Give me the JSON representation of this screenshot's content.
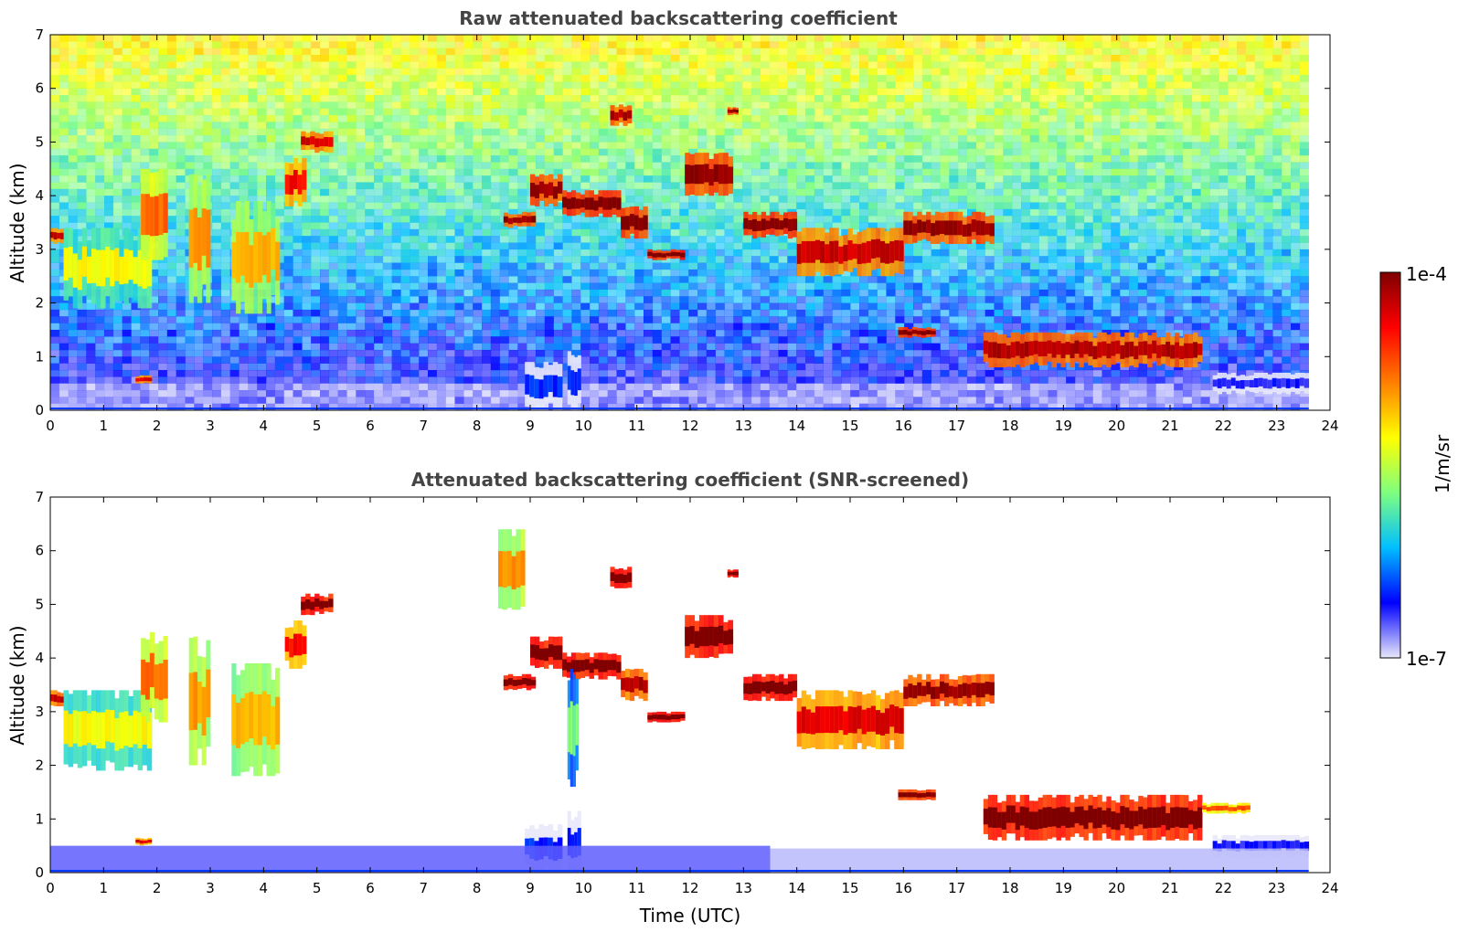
{
  "chart_data": {
    "type": "heatmap",
    "colorbar": {
      "label": "1/m/sr",
      "tick_max": "1e-4",
      "tick_min": "1e-7",
      "scale": "log",
      "vmin": 1e-07,
      "vmax": 0.0001,
      "colormap": "jet",
      "colors": [
        "#e8e8fa",
        "#0000ff",
        "#00bfff",
        "#7fff7f",
        "#ffff00",
        "#ff7f00",
        "#ff0000",
        "#7f0000"
      ]
    },
    "xlabel": "Time (UTC)",
    "x_ticks": [
      "0",
      "1",
      "2",
      "3",
      "4",
      "5",
      "6",
      "7",
      "8",
      "9",
      "10",
      "11",
      "12",
      "13",
      "14",
      "15",
      "16",
      "17",
      "18",
      "19",
      "20",
      "21",
      "22",
      "23",
      "24"
    ],
    "xlim": [
      0,
      24
    ],
    "data_end_hour": 23.6,
    "panels": [
      {
        "title": "Raw attenuated backscattering coefficient",
        "ylabel": "Altitude (km)",
        "y_ticks": [
          "0",
          "1",
          "2",
          "3",
          "4",
          "5",
          "6",
          "7"
        ],
        "ylim": [
          0,
          7
        ],
        "background": "noise",
        "features": [
          {
            "kind": "cloud",
            "t0": 0.0,
            "t1": 0.25,
            "base_km": 3.1,
            "top_km": 3.4,
            "level": 6.5
          },
          {
            "kind": "cloud",
            "t0": 0.25,
            "t1": 1.9,
            "base_km": 1.9,
            "top_km": 3.4,
            "level": 4.0
          },
          {
            "kind": "cloud",
            "t0": 1.7,
            "t1": 2.2,
            "base_km": 2.8,
            "top_km": 4.5,
            "level": 5.2
          },
          {
            "kind": "cloud",
            "t0": 2.6,
            "t1": 3.0,
            "base_km": 2.0,
            "top_km": 4.4,
            "level": 4.8
          },
          {
            "kind": "cloud",
            "t0": 3.4,
            "t1": 4.3,
            "base_km": 1.8,
            "top_km": 3.9,
            "level": 4.6
          },
          {
            "kind": "cloud",
            "t0": 4.4,
            "t1": 4.8,
            "base_km": 3.8,
            "top_km": 4.7,
            "level": 6.0
          },
          {
            "kind": "cloud",
            "t0": 4.7,
            "t1": 5.3,
            "base_km": 4.8,
            "top_km": 5.2,
            "level": 6.3
          },
          {
            "kind": "cloud",
            "t0": 1.6,
            "t1": 1.9,
            "base_km": 0.5,
            "top_km": 0.65,
            "level": 6.2
          },
          {
            "kind": "cloud",
            "t0": 8.5,
            "t1": 9.1,
            "base_km": 3.4,
            "top_km": 3.7,
            "level": 6.8
          },
          {
            "kind": "cloud",
            "t0": 9.0,
            "t1": 9.6,
            "base_km": 3.8,
            "top_km": 4.4,
            "level": 6.8
          },
          {
            "kind": "cloud",
            "t0": 9.6,
            "t1": 10.7,
            "base_km": 3.6,
            "top_km": 4.1,
            "level": 7.0
          },
          {
            "kind": "cloud",
            "t0": 10.7,
            "t1": 11.2,
            "base_km": 3.2,
            "top_km": 3.8,
            "level": 7.0
          },
          {
            "kind": "cloud",
            "t0": 11.2,
            "t1": 11.9,
            "base_km": 2.8,
            "top_km": 3.0,
            "level": 7.2
          },
          {
            "kind": "cloud",
            "t0": 10.5,
            "t1": 10.9,
            "base_km": 5.3,
            "top_km": 5.7,
            "level": 6.6
          },
          {
            "kind": "cloud",
            "t0": 11.9,
            "t1": 12.8,
            "base_km": 4.0,
            "top_km": 4.8,
            "level": 6.8
          },
          {
            "kind": "cloud",
            "t0": 12.7,
            "t1": 12.9,
            "base_km": 5.5,
            "top_km": 5.65,
            "level": 6.8
          },
          {
            "kind": "cloud",
            "t0": 13.0,
            "t1": 14.0,
            "base_km": 3.2,
            "top_km": 3.7,
            "level": 7.0
          },
          {
            "kind": "cloud",
            "t0": 14.0,
            "t1": 16.0,
            "base_km": 2.5,
            "top_km": 3.4,
            "level": 6.4
          },
          {
            "kind": "cloud",
            "t0": 16.0,
            "t1": 17.7,
            "base_km": 3.1,
            "top_km": 3.7,
            "level": 6.8
          },
          {
            "kind": "cloud",
            "t0": 15.9,
            "t1": 16.6,
            "base_km": 1.35,
            "top_km": 1.55,
            "level": 7.0
          },
          {
            "kind": "cloud",
            "t0": 17.5,
            "t1": 21.6,
            "base_km": 0.8,
            "top_km": 1.45,
            "level": 6.6
          },
          {
            "kind": "cloud",
            "t0": 8.9,
            "t1": 9.6,
            "base_km": 0.0,
            "top_km": 0.9,
            "level": 1.2
          },
          {
            "kind": "cloud",
            "t0": 9.7,
            "t1": 9.95,
            "base_km": 0.0,
            "top_km": 1.1,
            "level": 1.2
          },
          {
            "kind": "cloud",
            "t0": 21.8,
            "t1": 23.6,
            "base_km": 0.3,
            "top_km": 0.7,
            "level": 0.9
          }
        ]
      },
      {
        "title": "Attenuated backscattering coefficient (SNR-screened)",
        "ylabel": "Altitude (km)",
        "y_ticks": [
          "0",
          "1",
          "2",
          "3",
          "4",
          "5",
          "6",
          "7"
        ],
        "ylim": [
          0,
          7
        ],
        "background": "white",
        "features": [
          {
            "kind": "cloud",
            "t0": 0.0,
            "t1": 0.25,
            "base_km": 3.1,
            "top_km": 3.4,
            "level": 6.5
          },
          {
            "kind": "cloud",
            "t0": 0.25,
            "t1": 1.9,
            "base_km": 1.9,
            "top_km": 3.4,
            "level": 4.0
          },
          {
            "kind": "cloud",
            "t0": 1.7,
            "t1": 2.2,
            "base_km": 2.8,
            "top_km": 4.5,
            "level": 5.2
          },
          {
            "kind": "cloud",
            "t0": 2.6,
            "t1": 3.0,
            "base_km": 2.0,
            "top_km": 4.4,
            "level": 4.8
          },
          {
            "kind": "cloud",
            "t0": 3.4,
            "t1": 4.3,
            "base_km": 1.8,
            "top_km": 3.9,
            "level": 4.6
          },
          {
            "kind": "cloud",
            "t0": 4.4,
            "t1": 4.8,
            "base_km": 3.8,
            "top_km": 4.7,
            "level": 6.0
          },
          {
            "kind": "cloud",
            "t0": 4.7,
            "t1": 5.3,
            "base_km": 4.8,
            "top_km": 5.2,
            "level": 7.3
          },
          {
            "kind": "cloud",
            "t0": 1.6,
            "t1": 1.9,
            "base_km": 0.5,
            "top_km": 0.65,
            "level": 6.2
          },
          {
            "kind": "cloud",
            "t0": 8.5,
            "t1": 9.1,
            "base_km": 3.4,
            "top_km": 3.7,
            "level": 7.4
          },
          {
            "kind": "cloud",
            "t0": 9.0,
            "t1": 9.6,
            "base_km": 3.8,
            "top_km": 4.4,
            "level": 7.3
          },
          {
            "kind": "cloud",
            "t0": 9.6,
            "t1": 10.7,
            "base_km": 3.6,
            "top_km": 4.1,
            "level": 7.3
          },
          {
            "kind": "cloud",
            "t0": 10.7,
            "t1": 11.2,
            "base_km": 3.2,
            "top_km": 3.8,
            "level": 6.6
          },
          {
            "kind": "cloud",
            "t0": 11.2,
            "t1": 11.9,
            "base_km": 2.8,
            "top_km": 3.0,
            "level": 7.5
          },
          {
            "kind": "cloud",
            "t0": 10.5,
            "t1": 10.9,
            "base_km": 5.3,
            "top_km": 5.7,
            "level": 7.4
          },
          {
            "kind": "cloud",
            "t0": 11.9,
            "t1": 12.8,
            "base_km": 4.0,
            "top_km": 4.8,
            "level": 7.4
          },
          {
            "kind": "cloud",
            "t0": 12.7,
            "t1": 12.9,
            "base_km": 5.5,
            "top_km": 5.65,
            "level": 7.5
          },
          {
            "kind": "cloud",
            "t0": 13.0,
            "t1": 14.0,
            "base_km": 3.2,
            "top_km": 3.7,
            "level": 7.4
          },
          {
            "kind": "cloud",
            "t0": 14.0,
            "t1": 16.0,
            "base_km": 2.3,
            "top_km": 3.4,
            "level": 6.2
          },
          {
            "kind": "cloud",
            "t0": 16.0,
            "t1": 17.7,
            "base_km": 3.1,
            "top_km": 3.7,
            "level": 6.8
          },
          {
            "kind": "cloud",
            "t0": 8.4,
            "t1": 8.9,
            "base_km": 4.9,
            "top_km": 6.4,
            "level": 4.8
          },
          {
            "kind": "cloud",
            "t0": 9.7,
            "t1": 9.9,
            "base_km": 1.6,
            "top_km": 3.8,
            "level": 3.0
          },
          {
            "kind": "cloud",
            "t0": 15.9,
            "t1": 16.6,
            "base_km": 1.35,
            "top_km": 1.55,
            "level": 7.0
          },
          {
            "kind": "cloud",
            "t0": 17.5,
            "t1": 21.6,
            "base_km": 0.6,
            "top_km": 1.45,
            "level": 7.2
          },
          {
            "kind": "cloud",
            "t0": 21.6,
            "t1": 22.5,
            "base_km": 1.1,
            "top_km": 1.3,
            "level": 5.5
          },
          {
            "kind": "cloud",
            "t0": 8.9,
            "t1": 9.6,
            "base_km": 0.0,
            "top_km": 0.9,
            "level": 1.2
          },
          {
            "kind": "cloud",
            "t0": 9.7,
            "t1": 9.95,
            "base_km": 0.0,
            "top_km": 1.15,
            "level": 1.2
          },
          {
            "kind": "cloud",
            "t0": 21.8,
            "t1": 23.6,
            "base_km": 0.3,
            "top_km": 0.7,
            "level": 0.9
          },
          {
            "kind": "layer",
            "t0": 0.0,
            "t1": 13.5,
            "base_km": 0.0,
            "top_km": 0.5,
            "level": 0.6
          },
          {
            "kind": "layer",
            "t0": 13.5,
            "t1": 23.6,
            "base_km": 0.0,
            "top_km": 0.45,
            "level": 0.2
          }
        ]
      }
    ]
  }
}
